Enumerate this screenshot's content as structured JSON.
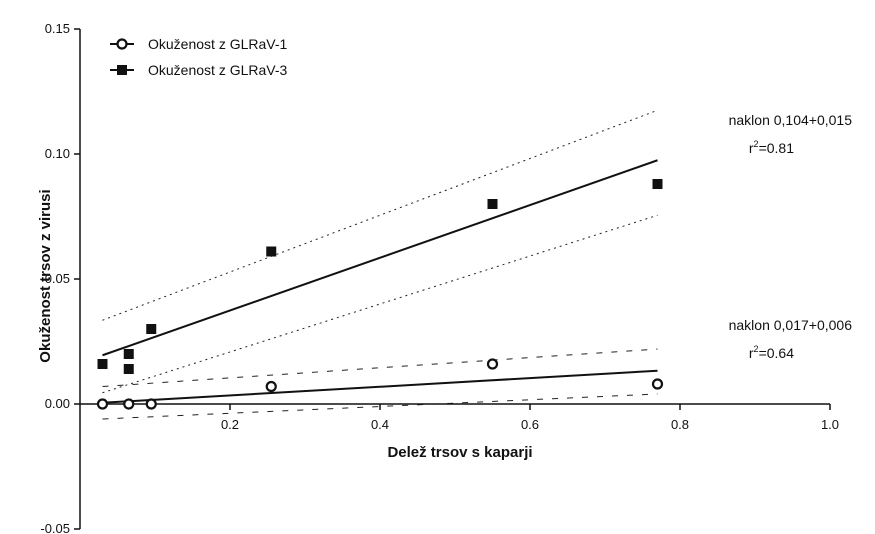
{
  "chart_data": {
    "type": "scatter",
    "xlabel": "Delež trsov s kaparji",
    "ylabel": "Okuženost trsov z virusi",
    "xlim": [
      0.0,
      1.0
    ],
    "ylim": [
      -0.05,
      0.15
    ],
    "x_ticks": [
      0.2,
      0.4,
      0.6,
      0.8,
      1.0
    ],
    "x_tick_labels": [
      "0.2",
      "0.4",
      "0.6",
      "0.8",
      "1.0"
    ],
    "y_ticks": [
      -0.05,
      0.0,
      0.05,
      0.1,
      0.15
    ],
    "y_tick_labels": [
      "-0.05",
      "0.00",
      "0.05",
      "0.10",
      "0.15"
    ],
    "grid": false,
    "legend_position": "top-left",
    "series": [
      {
        "name": "Okuženost z GLRaV-1",
        "marker": "open-circle",
        "color": "#111111",
        "x": [
          0.03,
          0.065,
          0.095,
          0.255,
          0.55,
          0.77
        ],
        "y": [
          0.0,
          0.0,
          0.0,
          0.007,
          0.016,
          0.008
        ],
        "fit_line": {
          "x": [
            0.03,
            0.77
          ],
          "y": [
            0.0005,
            0.0133
          ]
        },
        "ci_upper": {
          "x": [
            0.03,
            0.77
          ],
          "y": [
            0.007,
            0.022
          ]
        },
        "ci_lower": {
          "x": [
            0.03,
            0.77
          ],
          "y": [
            -0.006,
            0.004
          ]
        },
        "annotation": {
          "slope_text": "naklon 0,017+0,006",
          "r2_prefix": "r",
          "r2_sup": "2",
          "r2_value": "=0.64"
        }
      },
      {
        "name": "Okuženost z GLRaV-3",
        "marker": "filled-square",
        "color": "#111111",
        "x": [
          0.03,
          0.065,
          0.065,
          0.095,
          0.255,
          0.55,
          0.77
        ],
        "y": [
          0.016,
          0.014,
          0.02,
          0.03,
          0.061,
          0.08,
          0.088
        ],
        "fit_line": {
          "x": [
            0.03,
            0.77
          ],
          "y": [
            0.0195,
            0.0975
          ]
        },
        "ci_upper": {
          "x": [
            0.03,
            0.77
          ],
          "y": [
            0.0335,
            0.1175
          ]
        },
        "ci_lower": {
          "x": [
            0.03,
            0.77
          ],
          "y": [
            0.0045,
            0.0755
          ]
        },
        "annotation": {
          "slope_text": "naklon 0,104+0,015",
          "r2_prefix": "r",
          "r2_sup": "2",
          "r2_value": "=0.81"
        }
      }
    ]
  }
}
